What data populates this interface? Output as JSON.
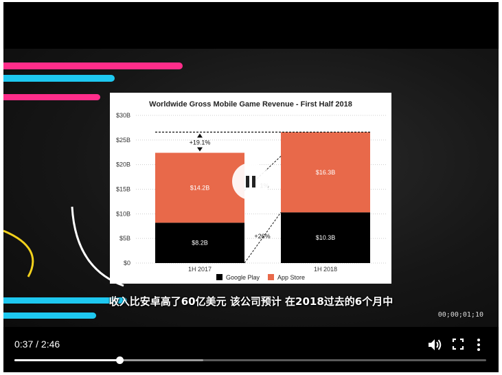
{
  "player": {
    "subtitle": "收入比安卓高了60亿美元  该公司预计 在2018过去的6个月中",
    "timecode": "00;00;01;10",
    "time_display": "0:37 / 2:46",
    "progress_fraction": 0.2229,
    "buffered_fraction": 0.4,
    "icons": {
      "pause": "pause-icon",
      "volume": "volume-icon",
      "fullscreen": "fullscreen-icon",
      "more": "more-options-icon"
    },
    "colors": {
      "stripe_pink": "#ff2d8a",
      "stripe_cyan": "#1ec8f0",
      "accent_yellow": "#f2d11c"
    }
  },
  "chart_data": {
    "type": "bar",
    "title": "Worldwide Gross Mobile Game Revenue - First Half 2018",
    "categories": [
      "1H 2017",
      "1H 2018"
    ],
    "series": [
      {
        "name": "Google Play",
        "values": [
          8.2,
          10.3
        ],
        "labels": [
          "$8.2B",
          "$10.3B"
        ],
        "color": "#000000"
      },
      {
        "name": "App Store",
        "values": [
          14.2,
          16.3
        ],
        "labels": [
          "$14.2B",
          "$16.3B"
        ],
        "color": "#e8694a"
      }
    ],
    "yticks": [
      "$0",
      "$5B",
      "$10B",
      "$15B",
      "$20B",
      "$25B",
      "$30B"
    ],
    "ylim": [
      0,
      30
    ],
    "annotations": [
      "+19.1%",
      "+26%",
      "1%"
    ],
    "legend_position": "bottom",
    "stacked": true
  }
}
